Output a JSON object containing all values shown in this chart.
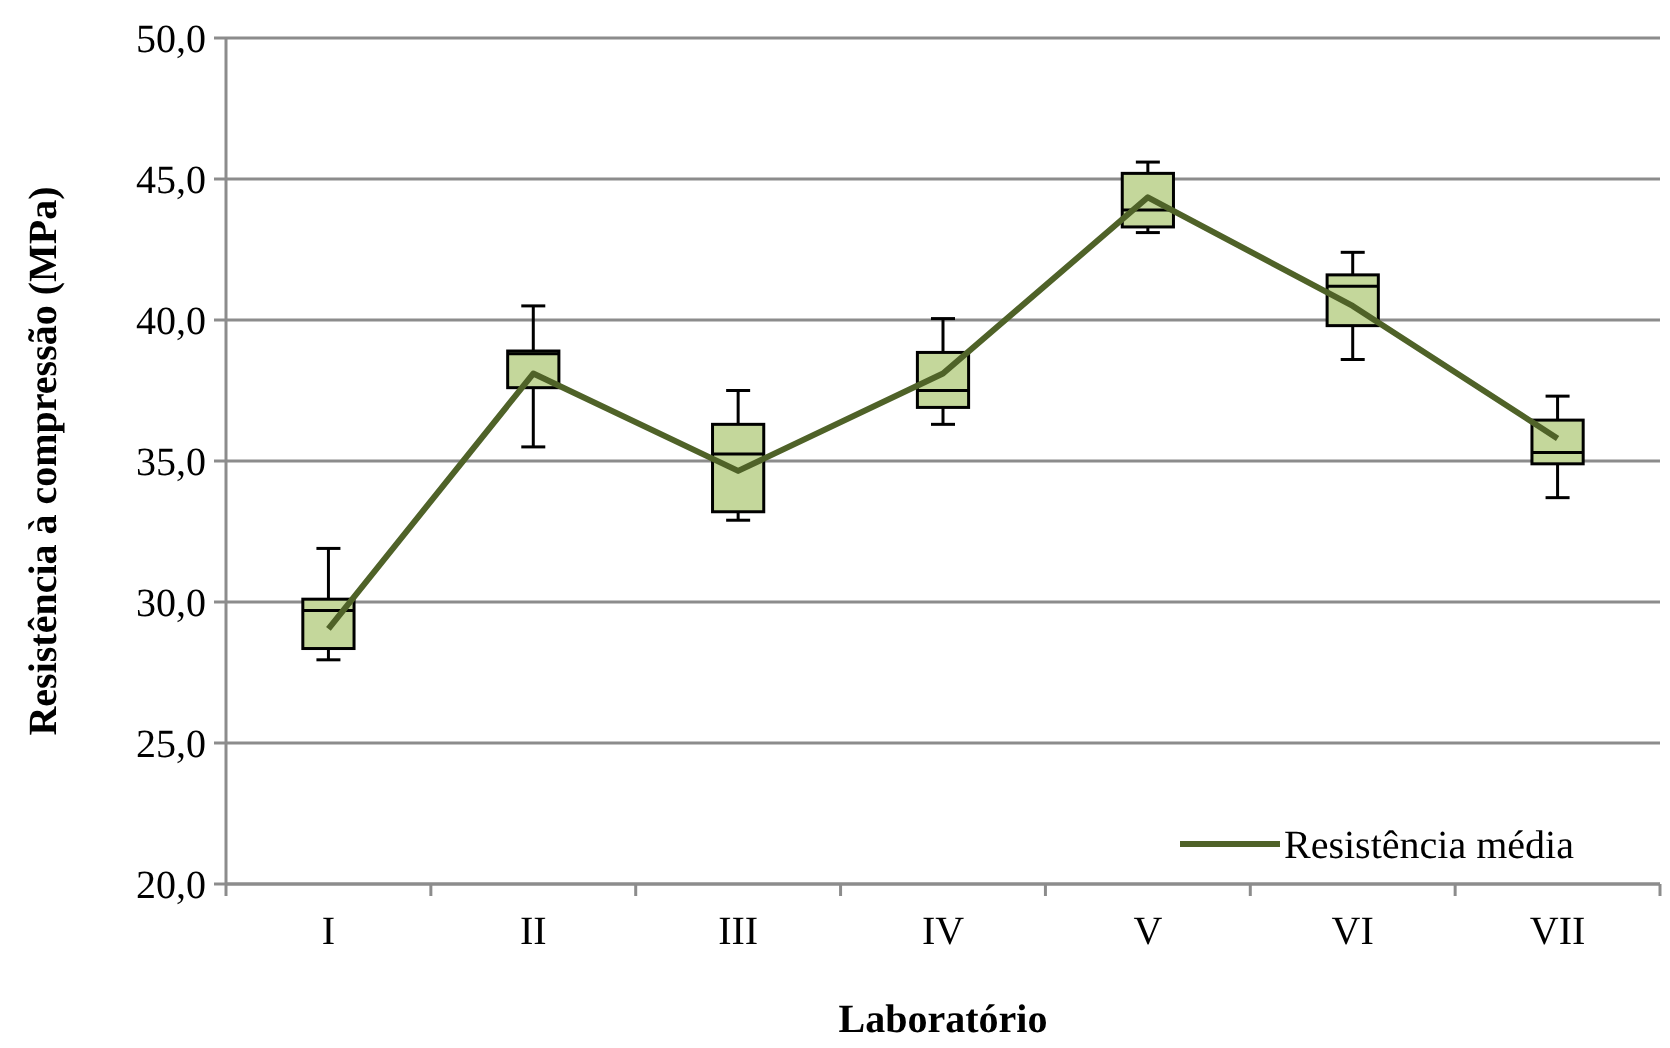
{
  "chart_data": {
    "type": "box",
    "xlabel": "Laboratório",
    "ylabel": "Resistência à compressão (MPa)",
    "categories": [
      "I",
      "II",
      "III",
      "IV",
      "V",
      "VI",
      "VII"
    ],
    "color": "#c4d79b",
    "boxes": [
      {
        "low": 27.95,
        "q1": 28.35,
        "median": 29.7,
        "q3": 30.1,
        "high": 31.9
      },
      {
        "low": 35.5,
        "q1": 37.6,
        "median": 38.8,
        "q3": 38.9,
        "high": 40.5
      },
      {
        "low": 32.9,
        "q1": 33.2,
        "median": 35.25,
        "q3": 36.3,
        "high": 37.5
      },
      {
        "low": 36.3,
        "q1": 36.9,
        "median": 37.5,
        "q3": 38.85,
        "high": 40.05
      },
      {
        "low": 43.1,
        "q1": 43.3,
        "median": 43.9,
        "q3": 45.2,
        "high": 45.6
      },
      {
        "low": 38.6,
        "q1": 39.8,
        "median": 41.2,
        "q3": 41.6,
        "high": 42.4
      },
      {
        "low": 33.7,
        "q1": 34.9,
        "median": 35.3,
        "q3": 36.45,
        "high": 37.3
      }
    ],
    "series": [
      {
        "type": "line",
        "name": "Resistência média",
        "color": "#4f6228",
        "values": [
          29.05,
          38.1,
          34.65,
          38.1,
          44.35,
          40.5,
          35.8
        ]
      }
    ],
    "ylim": [
      20,
      50
    ],
    "yticks": [
      {
        "value": 20,
        "label": "20,0"
      },
      {
        "value": 25,
        "label": "25,0"
      },
      {
        "value": 30,
        "label": "30,0"
      },
      {
        "value": 35,
        "label": "35,0"
      },
      {
        "value": 40,
        "label": "40,0"
      },
      {
        "value": 45,
        "label": "45,0"
      },
      {
        "value": 50,
        "label": "50,0"
      }
    ],
    "grid": "y",
    "legend": "bottom right",
    "marker": "none"
  }
}
